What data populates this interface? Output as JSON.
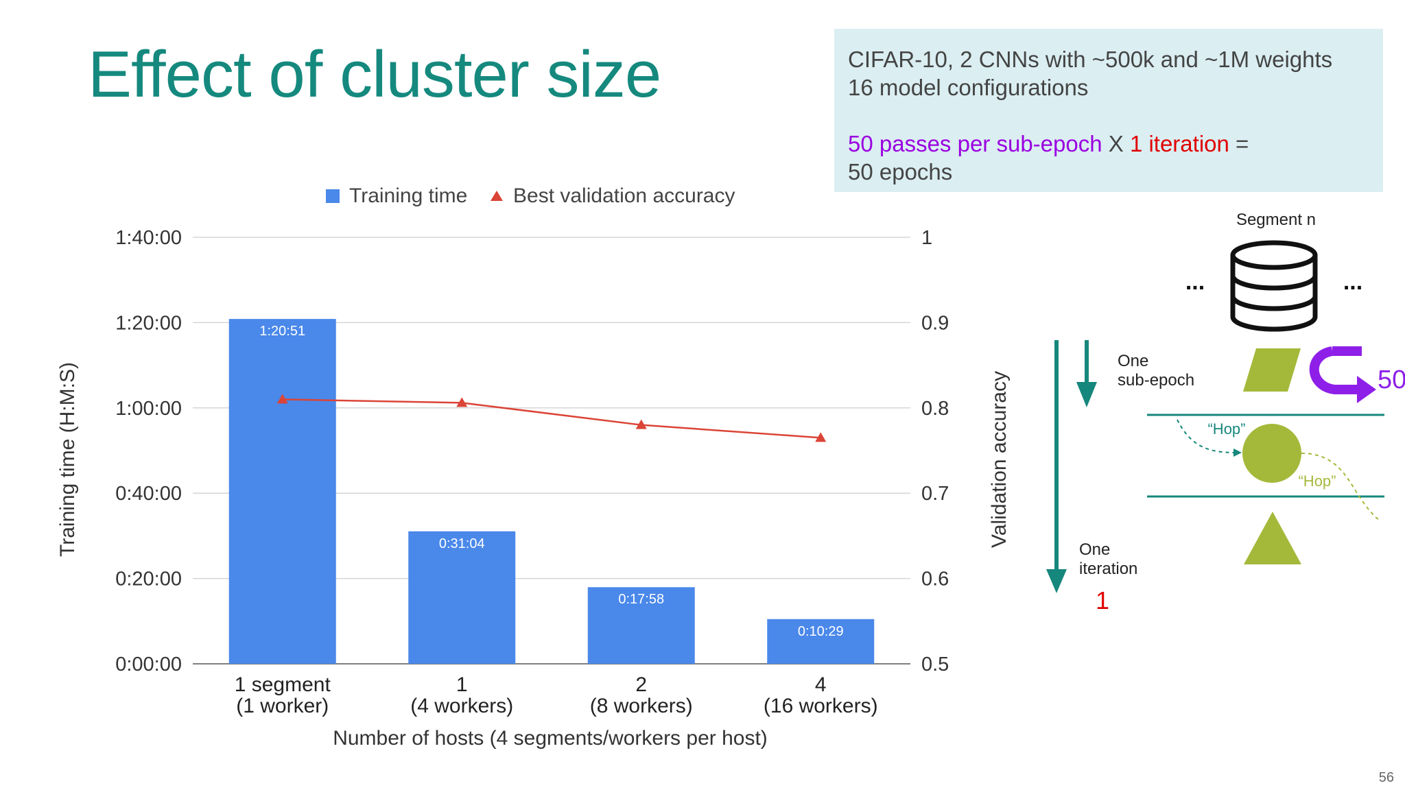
{
  "slide": {
    "title": "Effect of cluster size",
    "page_number": "56"
  },
  "info_box": {
    "line1": "CIFAR-10, 2 CNNs with ~500k and ~1M weights",
    "line2": "16 model configurations",
    "passes": "50 passes per sub-epoch",
    "times": " X ",
    "iteration": "1 iteration",
    "equals": " =",
    "epochs": "50 epochs"
  },
  "diagram": {
    "segment_label": "Segment n",
    "ellipsis_left": "...",
    "ellipsis_right": "...",
    "sub_epoch_label_1": "One",
    "sub_epoch_label_2": "sub-epoch",
    "iteration_label_1": "One",
    "iteration_label_2": "iteration",
    "iteration_count": "1",
    "loop_count": "50",
    "hop_label_1": "“Hop”",
    "hop_label_2": "“Hop”",
    "colors": {
      "teal": "#16877c",
      "green": "#a4b93a",
      "purple": "#8e1fe8",
      "red": "#e00000"
    }
  },
  "chart_data": {
    "type": "bar",
    "legend": [
      {
        "name": "Training time",
        "marker": "square",
        "color": "#4a88ea"
      },
      {
        "name": "Best validation accuracy",
        "marker": "triangle",
        "color": "#db4437"
      }
    ],
    "legend_position": "top-center",
    "categories": [
      [
        "1 segment",
        "(1 worker)"
      ],
      [
        "1",
        "(4 workers)"
      ],
      [
        "2",
        "(8 workers)"
      ],
      [
        "4",
        "(16 workers)"
      ]
    ],
    "series": [
      {
        "name": "Training time",
        "type": "bar",
        "axis": "left",
        "values_seconds": [
          4851,
          1864,
          1078,
          629
        ],
        "data_labels": [
          "1:20:51",
          "0:31:04",
          "0:17:58",
          "0:10:29"
        ],
        "color": "#4a88ea"
      },
      {
        "name": "Best validation accuracy",
        "type": "line",
        "axis": "right",
        "values": [
          0.81,
          0.806,
          0.78,
          0.765
        ],
        "color": "#db4437"
      }
    ],
    "xlabel": "Number of hosts (4 segments/workers per host)",
    "ylabel_left": "Training time (H:M:S)",
    "ylabel_right": "Validation accuracy",
    "yticks_left": [
      "0:00:00",
      "0:20:00",
      "0:40:00",
      "1:00:00",
      "1:20:00",
      "1:40:00"
    ],
    "ylim_left_seconds": [
      0,
      6000
    ],
    "yticks_right": [
      "0.5",
      "0.6",
      "0.7",
      "0.8",
      "0.9",
      "1"
    ],
    "ylim_right": [
      0.5,
      1.0
    ],
    "grid": true
  }
}
